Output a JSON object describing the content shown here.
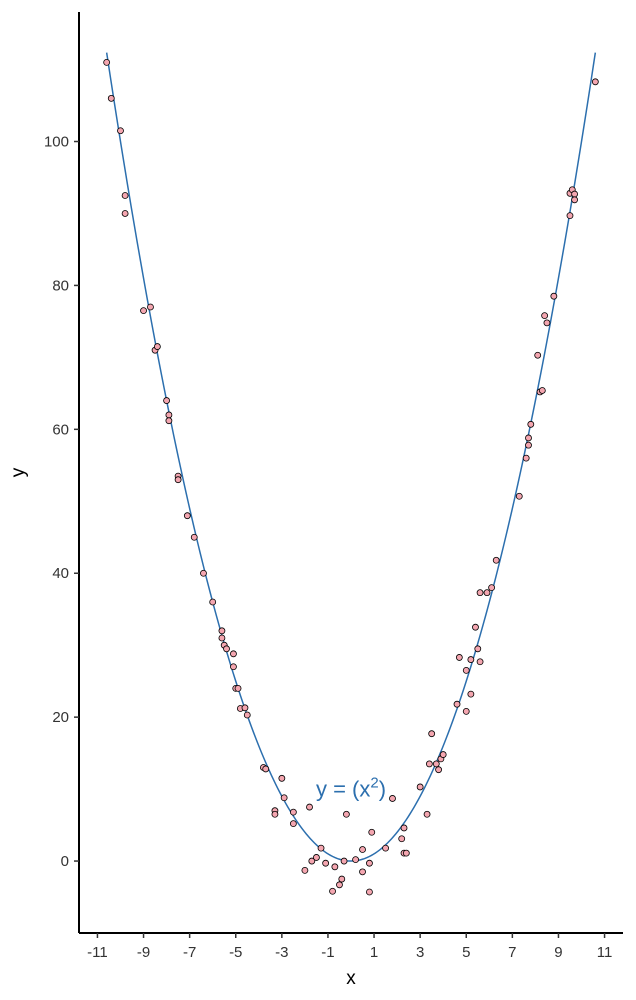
{
  "chart_data": {
    "type": "scatter",
    "xlabel": "x",
    "ylabel": "y",
    "xlim": [
      -11.8,
      11.8
    ],
    "ylim": [
      -10,
      118
    ],
    "xticks": [
      -11,
      -9,
      -7,
      -5,
      -3,
      -1,
      1,
      3,
      5,
      7,
      9,
      11
    ],
    "yticks": [
      0,
      20,
      40,
      60,
      80,
      100
    ],
    "grid": false,
    "point_color": "#f4a6b0",
    "point_edge_color": "#000000",
    "line_color": "#2c6fae",
    "fit": {
      "label_prefix": "y = (x",
      "label_sup": "2",
      "label_suffix": ")",
      "label_x": 0,
      "label_y": 9,
      "formula": "x^2",
      "x_range": [
        -10.6,
        10.6
      ]
    },
    "points": [
      [
        -10.6,
        111
      ],
      [
        -10.4,
        106
      ],
      [
        -10.0,
        101.5
      ],
      [
        -9.8,
        92.5
      ],
      [
        -9.8,
        90
      ],
      [
        -9.0,
        76.5
      ],
      [
        -8.7,
        77
      ],
      [
        -8.5,
        71
      ],
      [
        -8.4,
        71.5
      ],
      [
        -8.0,
        64
      ],
      [
        -7.9,
        62
      ],
      [
        -7.9,
        61.2
      ],
      [
        -7.5,
        53.5
      ],
      [
        -7.5,
        53
      ],
      [
        -7.1,
        48
      ],
      [
        -6.8,
        45
      ],
      [
        -6.4,
        40
      ],
      [
        -6.0,
        36
      ],
      [
        -5.6,
        32
      ],
      [
        -5.6,
        31
      ],
      [
        -5.5,
        30
      ],
      [
        -5.4,
        29.5
      ],
      [
        -5.1,
        28.8
      ],
      [
        -5.1,
        27
      ],
      [
        -5.0,
        24
      ],
      [
        -4.9,
        24
      ],
      [
        -4.8,
        21.2
      ],
      [
        -4.6,
        21.3
      ],
      [
        -4.5,
        20.3
      ],
      [
        -3.8,
        13
      ],
      [
        -3.7,
        12.8
      ],
      [
        -3.3,
        7
      ],
      [
        -3.3,
        6.5
      ],
      [
        -3.0,
        11.5
      ],
      [
        -2.9,
        8.8
      ],
      [
        -2.5,
        6.8
      ],
      [
        -2.5,
        5.2
      ],
      [
        -2.0,
        -1.3
      ],
      [
        -1.8,
        7.5
      ],
      [
        -1.7,
        0
      ],
      [
        -1.5,
        0.5
      ],
      [
        -1.3,
        1.8
      ],
      [
        -1.1,
        -0.3
      ],
      [
        -0.8,
        -4.2
      ],
      [
        -0.7,
        -0.8
      ],
      [
        -0.5,
        -3.3
      ],
      [
        -0.4,
        -2.5
      ],
      [
        -0.3,
        0
      ],
      [
        -0.2,
        6.5
      ],
      [
        0.2,
        0.2
      ],
      [
        0.5,
        1.6
      ],
      [
        0.5,
        -1.5
      ],
      [
        0.8,
        -4.3
      ],
      [
        0.8,
        -0.3
      ],
      [
        0.9,
        4
      ],
      [
        1.5,
        1.8
      ],
      [
        1.8,
        8.7
      ],
      [
        2.2,
        3.1
      ],
      [
        2.3,
        1.1
      ],
      [
        2.3,
        4.6
      ],
      [
        2.4,
        1.1
      ],
      [
        3.0,
        10.3
      ],
      [
        3.3,
        6.5
      ],
      [
        3.4,
        13.5
      ],
      [
        3.5,
        17.7
      ],
      [
        3.7,
        13.5
      ],
      [
        3.8,
        12.7
      ],
      [
        3.9,
        14.2
      ],
      [
        4.0,
        14.8
      ],
      [
        4.6,
        21.8
      ],
      [
        4.7,
        28.3
      ],
      [
        5.0,
        26.5
      ],
      [
        5.0,
        20.8
      ],
      [
        5.2,
        28
      ],
      [
        5.2,
        23.2
      ],
      [
        5.4,
        32.5
      ],
      [
        5.5,
        29.5
      ],
      [
        5.6,
        37.3
      ],
      [
        5.6,
        27.7
      ],
      [
        5.9,
        37.3
      ],
      [
        6.1,
        38
      ],
      [
        6.3,
        41.8
      ],
      [
        7.3,
        50.7
      ],
      [
        7.6,
        56
      ],
      [
        7.7,
        58.8
      ],
      [
        7.7,
        57.8
      ],
      [
        7.8,
        60.7
      ],
      [
        8.1,
        70.3
      ],
      [
        8.2,
        65.2
      ],
      [
        8.3,
        65.4
      ],
      [
        8.4,
        75.8
      ],
      [
        8.5,
        74.8
      ],
      [
        8.8,
        78.5
      ],
      [
        9.5,
        92.8
      ],
      [
        9.5,
        89.7
      ],
      [
        9.6,
        93.3
      ],
      [
        9.7,
        92.7
      ],
      [
        9.7,
        91.9
      ],
      [
        10.6,
        108.3
      ]
    ]
  }
}
